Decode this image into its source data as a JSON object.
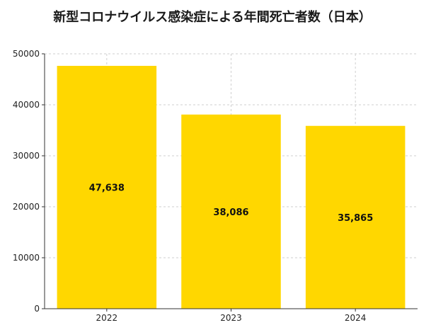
{
  "chart_data": {
    "type": "bar",
    "title": "新型コロナウイルス感染症による年間死亡者数（日本）",
    "xlabel": "",
    "ylabel": "",
    "categories": [
      "2022",
      "2023",
      "2024"
    ],
    "values": [
      47638,
      38086,
      35865
    ],
    "data_labels": [
      "47,638",
      "38,086",
      "35,865"
    ],
    "ylim": [
      0,
      50000
    ],
    "yticks": [
      0,
      10000,
      20000,
      30000,
      40000,
      50000
    ],
    "ytick_labels": [
      "0",
      "10000",
      "20000",
      "30000",
      "40000",
      "50000"
    ],
    "grid": true,
    "bar_color": "#FFD700"
  }
}
